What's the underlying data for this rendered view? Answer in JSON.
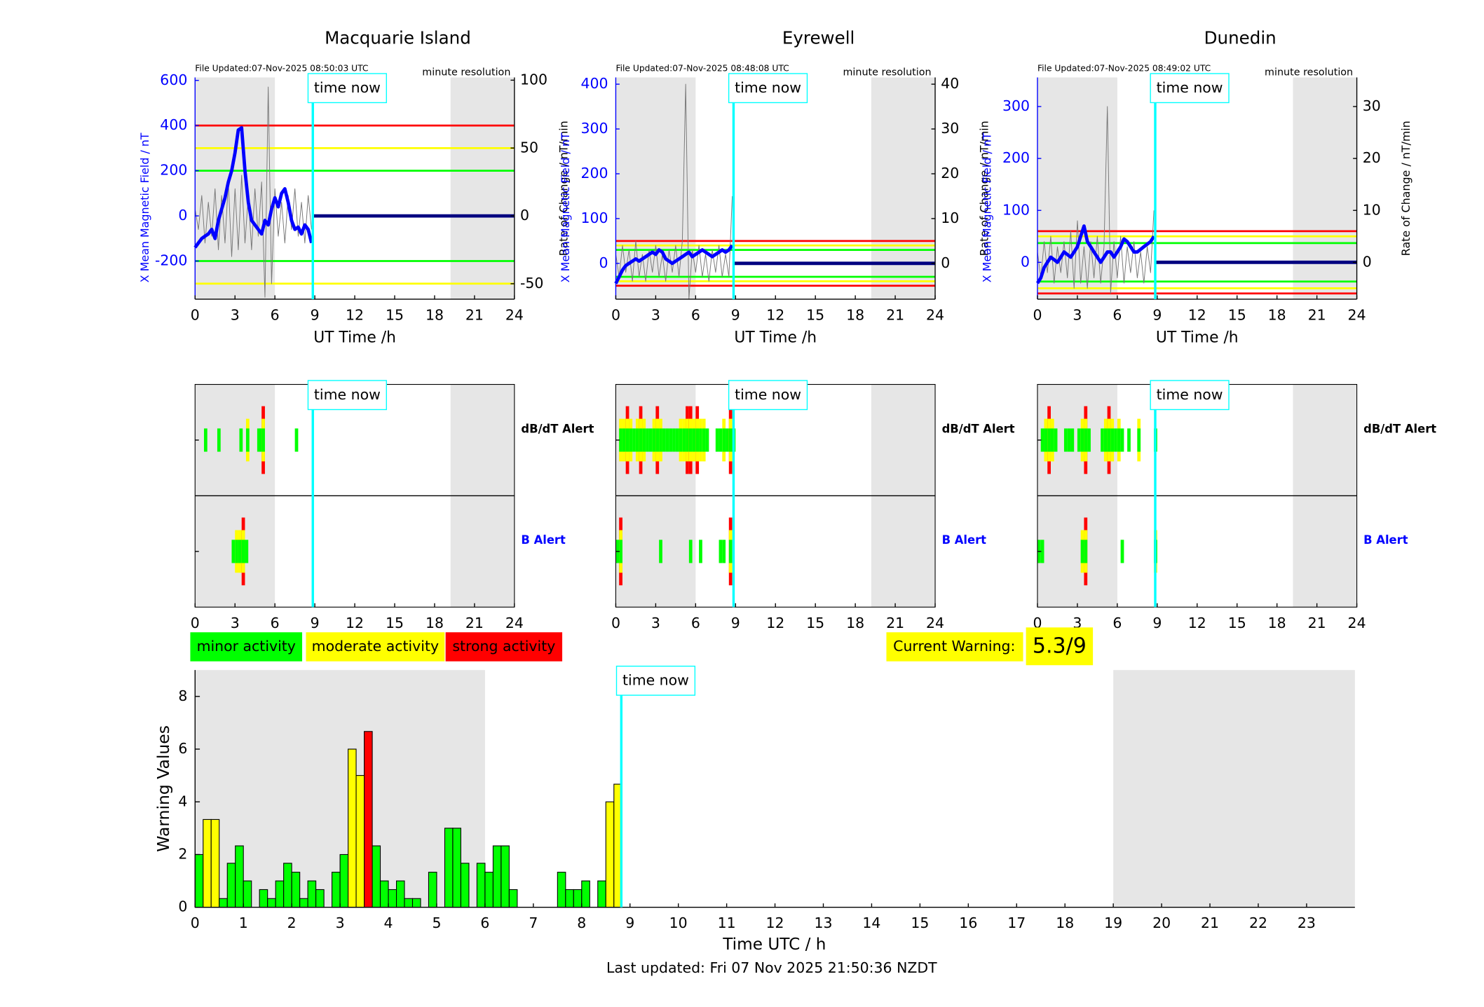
{
  "chart_data": [
    {
      "type": "line",
      "title": "Macquarie Island",
      "file_updated": "File Updated:07-Nov-2025 08:50:03 UTC",
      "resolution": "minute resolution",
      "ylabel": "X Mean Magnetic Field / nT",
      "y2label": "Rate of Change / nT/min",
      "xlabel": "UT Time /h",
      "xlim": [
        0,
        24
      ],
      "xticks": [
        0,
        3,
        6,
        9,
        12,
        15,
        18,
        21,
        24
      ],
      "ylim": [
        -369,
        613
      ],
      "yticks": [
        -200,
        0,
        200,
        400,
        600
      ],
      "y2lim": [
        -61.4,
        102
      ],
      "y2ticks": [
        -50,
        0,
        50,
        100
      ],
      "shaded": [
        [
          0,
          6
        ],
        [
          19.2,
          24
        ]
      ],
      "now": {
        "x": 8.85,
        "label": "time now"
      },
      "hlines": [
        {
          "value": 400,
          "color": "#ff0000"
        },
        {
          "value": 300,
          "color": "#ffff00"
        },
        {
          "value": 200,
          "color": "#00ff00"
        },
        {
          "value": -200,
          "color": "#00ff00"
        },
        {
          "value": -300,
          "color": "#ffff00"
        }
      ],
      "x": [
        0,
        0.25,
        0.5,
        0.75,
        1,
        1.25,
        1.5,
        1.75,
        2,
        2.25,
        2.5,
        2.75,
        3,
        3.25,
        3.5,
        3.75,
        4,
        4.25,
        4.5,
        4.75,
        5,
        5.25,
        5.5,
        5.75,
        6,
        6.25,
        6.5,
        6.75,
        7,
        7.25,
        7.5,
        7.75,
        8,
        8.25,
        8.5,
        8.75
      ],
      "series": [
        {
          "color": "#777777",
          "axis": "y2",
          "values": [
            5,
            -10,
            15,
            -20,
            10,
            -15,
            20,
            -25,
            15,
            -20,
            25,
            -30,
            20,
            -25,
            30,
            -20,
            15,
            -25,
            20,
            -15,
            25,
            -60,
            95,
            -50,
            20,
            -15,
            10,
            -20,
            15,
            -10,
            20,
            -15,
            10,
            -20,
            15,
            -10
          ]
        },
        {
          "color": "#0000ff",
          "values": [
            -140,
            -120,
            -100,
            -90,
            -80,
            -60,
            -100,
            -20,
            30,
            80,
            150,
            200,
            280,
            380,
            390,
            200,
            60,
            -20,
            -40,
            -60,
            -80,
            -20,
            -40,
            30,
            80,
            40,
            100,
            120,
            60,
            -20,
            -60,
            -50,
            -80,
            -40,
            -60,
            -120
          ]
        },
        {
          "color": "#000080",
          "x": [
            8.85,
            24
          ],
          "values": [
            0,
            0
          ]
        }
      ]
    },
    {
      "type": "line",
      "title": "Eyrewell",
      "file_updated": "File Updated:07-Nov-2025 08:48:08 UTC",
      "resolution": "minute resolution",
      "ylabel": "X Mean Magnetic Field / nT",
      "y2label": "Rate of Change / nT/min",
      "xlabel": "UT Time /h",
      "xlim": [
        0,
        24
      ],
      "xticks": [
        0,
        3,
        6,
        9,
        12,
        15,
        18,
        21,
        24
      ],
      "ylim": [
        -80,
        415
      ],
      "yticks": [
        0,
        100,
        200,
        300,
        400
      ],
      "y2lim": [
        -8,
        41.5
      ],
      "y2ticks": [
        0,
        10,
        20,
        30,
        40
      ],
      "shaded": [
        [
          0,
          6
        ],
        [
          19.2,
          24
        ]
      ],
      "now": {
        "x": 8.85,
        "label": "time now"
      },
      "hlines": [
        {
          "value": 50,
          "color": "#ff0000"
        },
        {
          "value": 40,
          "color": "#ffff00"
        },
        {
          "value": 30,
          "color": "#00ff00"
        },
        {
          "value": -30,
          "color": "#00ff00"
        },
        {
          "value": -40,
          "color": "#ffff00"
        },
        {
          "value": -50,
          "color": "#ff0000"
        }
      ],
      "x": [
        0,
        0.25,
        0.5,
        0.75,
        1,
        1.25,
        1.5,
        1.75,
        2,
        2.25,
        2.5,
        2.75,
        3,
        3.25,
        3.5,
        3.75,
        4,
        4.25,
        4.5,
        4.75,
        5,
        5.25,
        5.5,
        5.75,
        6,
        6.25,
        6.5,
        6.75,
        7,
        7.25,
        7.5,
        7.75,
        8,
        8.25,
        8.5,
        8.75
      ],
      "series": [
        {
          "color": "#777777",
          "axis": "y2",
          "values": [
            2,
            -3,
            4,
            -2,
            3,
            -4,
            5,
            -3,
            2,
            -4,
            3,
            -2,
            4,
            -3,
            2,
            -4,
            3,
            -2,
            4,
            -3,
            5,
            40,
            -8,
            3,
            -2,
            4,
            -3,
            2,
            -4,
            3,
            -2,
            4,
            -3,
            2,
            -3,
            15
          ]
        },
        {
          "color": "#0000ff",
          "values": [
            -45,
            -30,
            -15,
            -5,
            0,
            5,
            10,
            5,
            10,
            15,
            20,
            25,
            20,
            30,
            25,
            10,
            5,
            0,
            5,
            10,
            15,
            20,
            25,
            15,
            20,
            25,
            30,
            25,
            20,
            15,
            20,
            25,
            30,
            25,
            30,
            40
          ]
        },
        {
          "color": "#000080",
          "x": [
            8.85,
            24
          ],
          "values": [
            0,
            0
          ]
        }
      ]
    },
    {
      "type": "line",
      "title": "Dunedin",
      "file_updated": "File Updated:07-Nov-2025 08:49:02 UTC",
      "resolution": "minute resolution",
      "ylabel": "X Mean Magnetic Field / nT",
      "y2label": "Rate of Change / nT/min",
      "xlabel": "UT Time /h",
      "xlim": [
        0,
        24
      ],
      "xticks": [
        0,
        3,
        6,
        9,
        12,
        15,
        18,
        21,
        24
      ],
      "ylim": [
        -71,
        356
      ],
      "yticks": [
        0,
        100,
        200,
        300
      ],
      "y2lim": [
        -7.1,
        35.6
      ],
      "y2ticks": [
        0,
        10,
        20,
        30
      ],
      "shaded": [
        [
          0,
          6
        ],
        [
          19.2,
          24
        ]
      ],
      "now": {
        "x": 8.85,
        "label": "time now"
      },
      "hlines": [
        {
          "value": 60,
          "color": "#ff0000"
        },
        {
          "value": 50,
          "color": "#ffff00"
        },
        {
          "value": 37,
          "color": "#00ff00"
        },
        {
          "value": -37,
          "color": "#00ff00"
        },
        {
          "value": -50,
          "color": "#ffff00"
        },
        {
          "value": -60,
          "color": "#ff0000"
        }
      ],
      "x": [
        0,
        0.25,
        0.5,
        0.75,
        1,
        1.25,
        1.5,
        1.75,
        2,
        2.25,
        2.5,
        2.75,
        3,
        3.25,
        3.5,
        3.75,
        4,
        4.25,
        4.5,
        4.75,
        5,
        5.25,
        5.5,
        5.75,
        6,
        6.25,
        6.5,
        6.75,
        7,
        7.25,
        7.5,
        7.75,
        8,
        8.25,
        8.5,
        8.75
      ],
      "series": [
        {
          "color": "#777777",
          "axis": "y2",
          "values": [
            2,
            -3,
            4,
            -2,
            5,
            -4,
            3,
            -2,
            4,
            -3,
            6,
            -5,
            8,
            -4,
            3,
            -5,
            4,
            -3,
            5,
            -4,
            3,
            30,
            -6,
            4,
            -3,
            5,
            -4,
            3,
            -2,
            4,
            -3,
            2,
            -4,
            3,
            -2,
            10
          ]
        },
        {
          "color": "#0000ff",
          "values": [
            -40,
            -30,
            -10,
            0,
            10,
            5,
            0,
            10,
            20,
            15,
            10,
            20,
            30,
            50,
            70,
            40,
            30,
            20,
            10,
            0,
            10,
            20,
            20,
            10,
            20,
            30,
            45,
            40,
            30,
            20,
            20,
            25,
            30,
            35,
            40,
            50
          ]
        },
        {
          "color": "#000080",
          "x": [
            8.85,
            24
          ],
          "values": [
            0,
            0
          ]
        }
      ]
    },
    {
      "type": "alert",
      "xlim": [
        0,
        24
      ],
      "xticks": [
        0,
        3,
        6,
        9,
        12,
        15,
        18,
        21,
        24
      ],
      "shaded": [
        [
          0,
          6
        ],
        [
          19.2,
          24
        ]
      ],
      "now": {
        "x": 8.85,
        "label": "time now"
      },
      "bin_width": 0.25,
      "level_colors": [
        "#00ff00",
        "#ffff00",
        "#ff0000"
      ],
      "rows": [
        {
          "label": "dB/dT Alert",
          "color": "#000000",
          "x": [
            0.67,
            1.67,
            3.33,
            3.83,
            4.67,
            4.83,
            5.0,
            7.5
          ],
          "values": [
            1,
            1,
            1,
            2,
            1,
            1,
            3,
            1
          ]
        },
        {
          "label": "B Alert",
          "color": "#0000ff",
          "x": [
            2.75,
            3.0,
            3.25,
            3.5,
            3.75
          ],
          "values": [
            1,
            2,
            2,
            3,
            1
          ]
        }
      ]
    },
    {
      "type": "alert",
      "xlim": [
        0,
        24
      ],
      "xticks": [
        0,
        3,
        6,
        9,
        12,
        15,
        18,
        21,
        24
      ],
      "shaded": [
        [
          0,
          6
        ],
        [
          19.2,
          24
        ]
      ],
      "now": {
        "x": 8.85,
        "label": "time now"
      },
      "bin_width": 0.25,
      "level_colors": [
        "#00ff00",
        "#ffff00",
        "#ff0000"
      ],
      "rows": [
        {
          "label": "dB/dT Alert",
          "color": "#000000",
          "x": [
            0.25,
            0.5,
            0.75,
            1,
            1.25,
            1.5,
            1.75,
            2,
            2.25,
            2.5,
            2.75,
            3,
            3.25,
            3.5,
            3.75,
            4,
            4.25,
            4.5,
            4.75,
            5,
            5.25,
            5.5,
            5.75,
            6,
            6.25,
            6.5,
            6.75,
            7.5,
            7.75,
            8,
            8.25,
            8.5,
            8.75
          ],
          "values": [
            2,
            2,
            3,
            2,
            1,
            2,
            3,
            2,
            1,
            1,
            2,
            3,
            2,
            1,
            1,
            1,
            1,
            1,
            2,
            2,
            3,
            3,
            2,
            3,
            2,
            2,
            1,
            1,
            1,
            2,
            1,
            3,
            1
          ]
        },
        {
          "label": "B Alert",
          "color": "#0000ff",
          "x": [
            0,
            0.25,
            3.25,
            5.5,
            6.25,
            7.75,
            8,
            8.5
          ],
          "values": [
            1,
            3,
            1,
            1,
            1,
            1,
            1,
            3
          ]
        }
      ]
    },
    {
      "type": "alert",
      "xlim": [
        0,
        24
      ],
      "xticks": [
        0,
        3,
        6,
        9,
        12,
        15,
        18,
        21,
        24
      ],
      "shaded": [
        [
          0,
          6
        ],
        [
          19.2,
          24
        ]
      ],
      "now": {
        "x": 8.85,
        "label": "time now"
      },
      "bin_width": 0.25,
      "level_colors": [
        "#00ff00",
        "#ffff00",
        "#ff0000"
      ],
      "rows": [
        {
          "label": "dB/dT Alert",
          "color": "#000000",
          "x": [
            0.25,
            0.5,
            0.75,
            1,
            1.25,
            2,
            2.25,
            2.5,
            3,
            3.25,
            3.5,
            3.75,
            4.75,
            5,
            5.25,
            5.5,
            5.75,
            6,
            6.25,
            6.75,
            7.5,
            8.75
          ],
          "values": [
            1,
            2,
            3,
            2,
            1,
            1,
            1,
            1,
            1,
            2,
            3,
            1,
            1,
            2,
            3,
            2,
            1,
            2,
            1,
            1,
            2,
            1
          ]
        },
        {
          "label": "B Alert",
          "color": "#0000ff",
          "x": [
            0,
            0.25,
            3.25,
            3.5,
            6.25,
            8.75
          ],
          "values": [
            1,
            1,
            2,
            3,
            1,
            2
          ]
        }
      ]
    },
    {
      "type": "histogram",
      "ylabel": "Warning Values",
      "xlabel": "Time UTC / h",
      "xlim": [
        0,
        24
      ],
      "xticks": [
        0,
        1,
        2,
        3,
        4,
        5,
        6,
        7,
        8,
        9,
        10,
        11,
        12,
        13,
        14,
        15,
        16,
        17,
        18,
        19,
        20,
        21,
        22,
        23
      ],
      "ylim": [
        0,
        9
      ],
      "yticks": [
        0,
        2,
        4,
        6,
        8
      ],
      "shaded": [
        [
          0,
          6
        ],
        [
          19,
          24
        ]
      ],
      "now": {
        "x": 8.82,
        "label": "time now"
      },
      "bins": [
        0,
        0.167,
        0.333,
        0.5,
        0.667,
        0.833,
        1,
        1.167,
        1.333,
        1.5,
        1.667,
        1.833,
        2,
        2.167,
        2.333,
        2.5,
        2.667,
        2.833,
        3,
        3.167,
        3.333,
        3.5,
        3.667,
        3.833,
        4,
        4.167,
        4.333,
        4.5,
        4.667,
        4.833,
        5,
        5.167,
        5.333,
        5.5,
        5.667,
        5.833,
        6,
        6.167,
        6.333,
        6.5,
        6.667,
        6.833,
        7,
        7.167,
        7.333,
        7.5,
        7.667,
        7.833,
        8,
        8.167,
        8.333,
        8.5,
        8.667,
        8.833
      ],
      "values": [
        2,
        3.33,
        3.33,
        0.33,
        1.67,
        2.33,
        1,
        0,
        0.67,
        0.33,
        1,
        1.67,
        1.33,
        0.33,
        1,
        0.67,
        0,
        1.33,
        2,
        6,
        5,
        6.67,
        2.33,
        1,
        0.67,
        1,
        0.33,
        0.33,
        0,
        1.33,
        0,
        3,
        3,
        1.67,
        0,
        1.67,
        1.33,
        2.33,
        2.33,
        0.67,
        0,
        0,
        0,
        0,
        0,
        1.33,
        0.67,
        0.67,
        1,
        0,
        1,
        4,
        4.67
      ],
      "colors": [
        "#00ff00",
        "#ffff00",
        "#ffff00",
        "#00ff00",
        "#00ff00",
        "#00ff00",
        "#00ff00",
        "#00ff00",
        "#00ff00",
        "#00ff00",
        "#00ff00",
        "#00ff00",
        "#00ff00",
        "#00ff00",
        "#00ff00",
        "#00ff00",
        "#00ff00",
        "#00ff00",
        "#00ff00",
        "#ffff00",
        "#ffff00",
        "#ff0000",
        "#00ff00",
        "#00ff00",
        "#00ff00",
        "#00ff00",
        "#00ff00",
        "#00ff00",
        "#00ff00",
        "#00ff00",
        "#00ff00",
        "#00ff00",
        "#00ff00",
        "#00ff00",
        "#00ff00",
        "#00ff00",
        "#00ff00",
        "#00ff00",
        "#00ff00",
        "#00ff00",
        "#00ff00",
        "#00ff00",
        "#00ff00",
        "#00ff00",
        "#00ff00",
        "#00ff00",
        "#00ff00",
        "#00ff00",
        "#00ff00",
        "#00ff00",
        "#00ff00",
        "#ffff00",
        "#ffff00"
      ]
    }
  ],
  "legend": [
    {
      "label": "minor activity",
      "color": "#00ff00"
    },
    {
      "label": "moderate activity",
      "color": "#ffff00"
    },
    {
      "label": "strong activity",
      "color": "#ff0000"
    }
  ],
  "current_warning": {
    "label": "Current Warning:",
    "value": "5.3/9",
    "color": "#ffff00"
  },
  "footer": "Last updated: Fri 07 Nov 2025 21:50:36 NZDT"
}
